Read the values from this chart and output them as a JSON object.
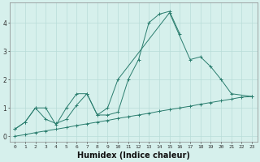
{
  "x_values": [
    0,
    1,
    2,
    3,
    4,
    5,
    6,
    7,
    8,
    9,
    10,
    11,
    12,
    13,
    14,
    15,
    16,
    17,
    18,
    19,
    20,
    21,
    22,
    23
  ],
  "line1": [
    0.25,
    0.5,
    1.0,
    0.6,
    0.45,
    0.6,
    1.1,
    1.5,
    0.75,
    0.75,
    0.85,
    2.0,
    2.7,
    4.0,
    4.3,
    4.4,
    3.6,
    null,
    null,
    null,
    null,
    null,
    null,
    null
  ],
  "line2": [
    0.25,
    0.5,
    1.0,
    1.0,
    0.4,
    1.0,
    1.5,
    1.5,
    0.75,
    1.0,
    2.0,
    null,
    null,
    null,
    null,
    4.35,
    null,
    2.7,
    2.8,
    2.45,
    2.0,
    1.5,
    null,
    1.4
  ],
  "line3": [
    0.0,
    0.06,
    0.13,
    0.19,
    0.25,
    0.31,
    0.38,
    0.44,
    0.5,
    0.56,
    0.63,
    0.69,
    0.75,
    0.81,
    0.88,
    0.94,
    1.0,
    1.06,
    1.13,
    1.19,
    1.25,
    1.31,
    1.38,
    1.4
  ],
  "line_color": "#2a7d6e",
  "bg_color": "#d6f0ec",
  "grid_color": "#b8ddd8",
  "xlabel": "Humidex (Indice chaleur)",
  "xlabel_fontsize": 7,
  "ylim": [
    -0.2,
    4.7
  ],
  "xlim": [
    -0.5,
    23.5
  ],
  "yticks": [
    0,
    1,
    2,
    3,
    4
  ],
  "xticks": [
    0,
    1,
    2,
    3,
    4,
    5,
    6,
    7,
    8,
    9,
    10,
    11,
    12,
    13,
    14,
    15,
    16,
    17,
    18,
    19,
    20,
    21,
    22,
    23
  ]
}
